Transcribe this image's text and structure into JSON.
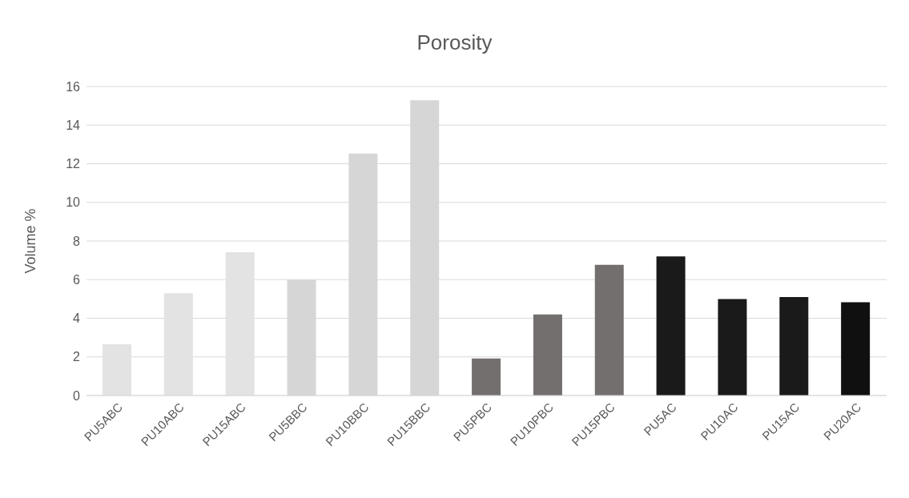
{
  "chart_data": {
    "type": "bar",
    "title": "Porosity",
    "ylabel": "Volume %",
    "categories": [
      "PU5ABC",
      "PU10ABC",
      "PU15ABC",
      "PU5BBC",
      "PU10BBC",
      "PU15BBC",
      "PU5PBC",
      "PU10PBC",
      "PU15PBC",
      "PU5AC",
      "PU10AC",
      "PU15AC",
      "PU20AC"
    ],
    "values": [
      2.65,
      5.3,
      7.42,
      6.0,
      12.53,
      15.28,
      1.92,
      4.2,
      6.77,
      7.2,
      5.0,
      5.1,
      4.83
    ],
    "colors": [
      "#e3e3e3",
      "#e3e3e3",
      "#e3e3e3",
      "#d6d6d6",
      "#d6d6d6",
      "#d6d6d6",
      "#736f6e",
      "#736f6e",
      "#736f6e",
      "#1a1a1a",
      "#1a1a1a",
      "#1a1a1a",
      "#101010"
    ],
    "ylim": [
      0,
      16
    ],
    "yticks": [
      0,
      2,
      4,
      6,
      8,
      10,
      12,
      14,
      16
    ],
    "grid": "y"
  }
}
